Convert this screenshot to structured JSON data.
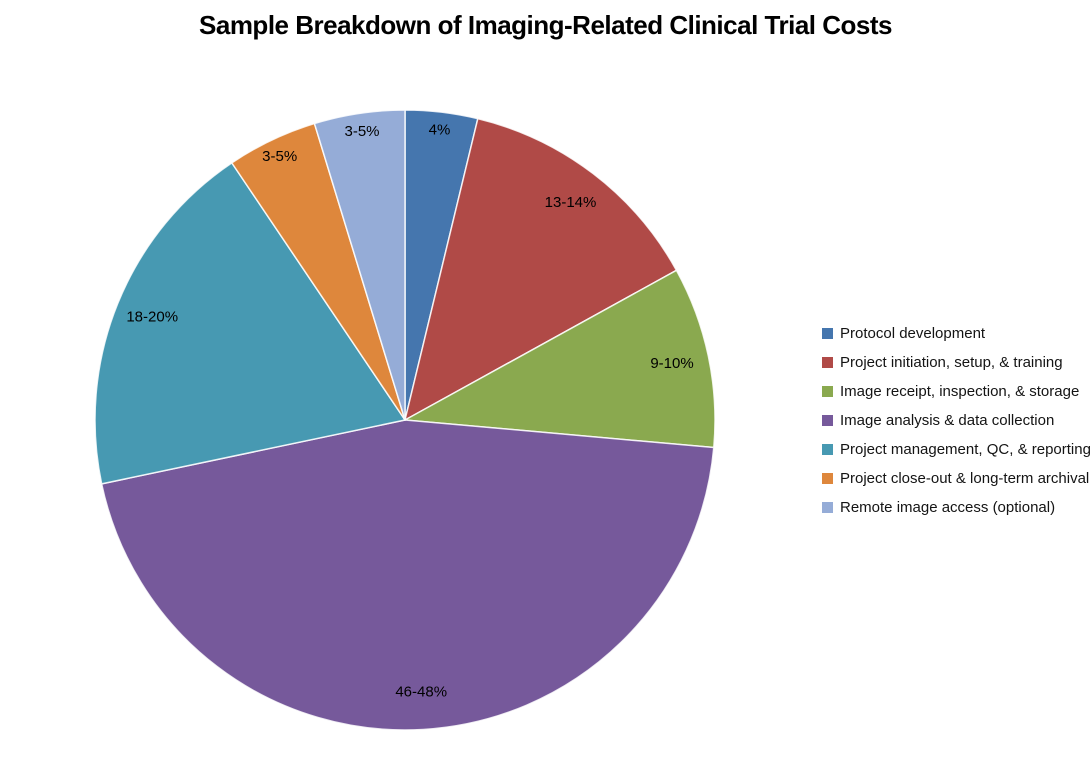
{
  "page": {
    "background": "#ffffff"
  },
  "chart_data": {
    "type": "pie",
    "title": "Sample Breakdown of Imaging-Related Clinical Trial Costs",
    "legend_position": "right",
    "direction": "clockwise",
    "start_angle_deg": 0,
    "data_labels": "inside-end",
    "slices": [
      {
        "label": "Protocol development",
        "value_label": "4%",
        "value": 4,
        "range_pct": [
          4,
          4
        ],
        "color": "#4576AE"
      },
      {
        "label": "Project initiation, setup, & training",
        "value_label": "13-14%",
        "value": 14,
        "range_pct": [
          13,
          14
        ],
        "color": "#B04A47"
      },
      {
        "label": "Image receipt, inspection, & storage",
        "value_label": "9-10%",
        "value": 10,
        "range_pct": [
          9,
          10
        ],
        "color": "#8AA94F"
      },
      {
        "label": "Image analysis & data collection",
        "value_label": "46-48%",
        "value": 48,
        "range_pct": [
          46,
          48
        ],
        "color": "#76599B"
      },
      {
        "label": "Project management, QC, & reporting",
        "value_label": "18-20%",
        "value": 20,
        "range_pct": [
          18,
          20
        ],
        "color": "#4799B2"
      },
      {
        "label": "Project close-out & long-term archival",
        "value_label": "3-5%",
        "value": 5,
        "range_pct": [
          3,
          5
        ],
        "color": "#DE873C"
      },
      {
        "label": "Remote image access (optional)",
        "value_label": "3-5%",
        "value": 5,
        "range_pct": [
          3,
          5
        ],
        "color": "#95ACD7"
      }
    ]
  }
}
